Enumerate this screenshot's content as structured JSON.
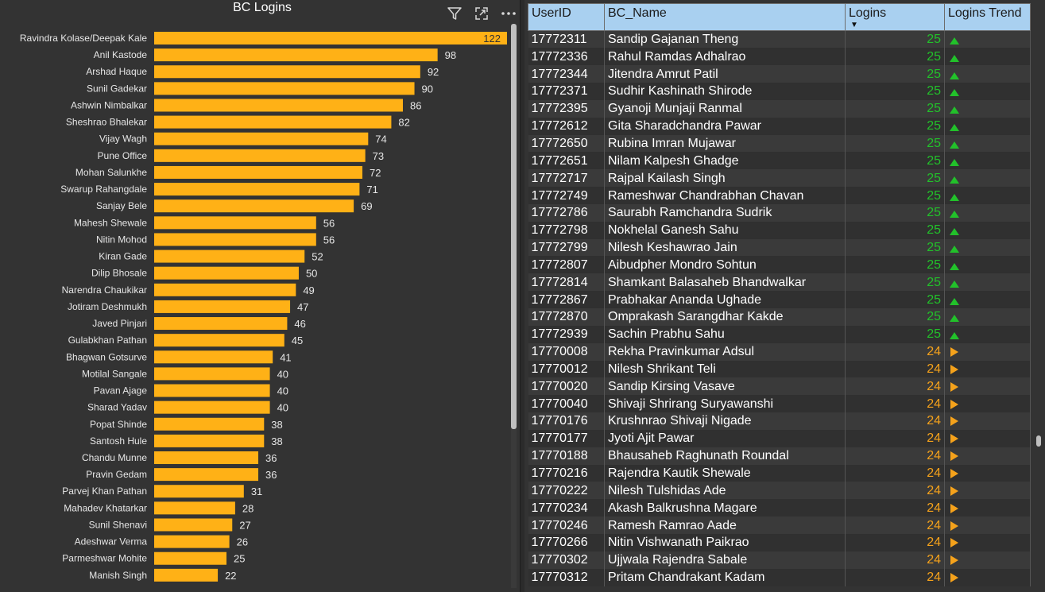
{
  "chart": {
    "title": "BC Logins",
    "icons": [
      "filter-icon",
      "focus-mode-icon",
      "more-options-icon"
    ]
  },
  "chart_data": {
    "type": "bar",
    "orientation": "horizontal",
    "title": "BC Logins",
    "bar_color": "#ffb116",
    "categories": [
      "Ravindra Kolase/Deepak Kale",
      "Anil Kastode",
      "Arshad Haque",
      "Sunil Gadekar",
      "Ashwin Nimbalkar",
      "Sheshrao Bhalekar",
      "Vijay Wagh",
      "Pune Office",
      "Mohan Salunkhe",
      "Swarup Rahangdale",
      "Sanjay Bele",
      "Mahesh Shewale",
      "Nitin Mohod",
      "Kiran Gade",
      "Dilip Bhosale",
      "Narendra Chaukikar",
      "Jotiram Deshmukh",
      "Javed Pinjari",
      "Gulabkhan Pathan",
      "Bhagwan Gotsurve",
      "Motilal Sangale",
      "Pavan Ajage",
      "Sharad Yadav",
      "Popat Shinde",
      "Santosh Hule",
      "Chandu Munne",
      "Pravin Gedam",
      "Parvej Khan Pathan",
      "Mahadev Khatarkar",
      "Sunil Shenavi",
      "Adeshwar Verma",
      "Parmeshwar Mohite",
      "Manish Singh"
    ],
    "values": [
      122,
      98,
      92,
      90,
      86,
      82,
      74,
      73,
      72,
      71,
      69,
      56,
      56,
      52,
      50,
      49,
      47,
      46,
      45,
      41,
      40,
      40,
      40,
      38,
      38,
      36,
      36,
      31,
      28,
      27,
      26,
      25,
      22
    ]
  },
  "table": {
    "headers": {
      "userid": "UserID",
      "name": "BC_Name",
      "logins": "Logins",
      "trend": "Logins Trend"
    },
    "colors": {
      "up": "#22c12a",
      "flat": "#f5a21b",
      "header_bg": "#a9d0f0"
    },
    "rows": [
      {
        "id": "17772311",
        "name": "Sandip Gajanan Theng",
        "logins": "25",
        "trend": "up"
      },
      {
        "id": "17772336",
        "name": "Rahul Ramdas Adhalrao",
        "logins": "25",
        "trend": "up"
      },
      {
        "id": "17772344",
        "name": "Jitendra Amrut Patil",
        "logins": "25",
        "trend": "up"
      },
      {
        "id": "17772371",
        "name": "Sudhir Kashinath Shirode",
        "logins": "25",
        "trend": "up"
      },
      {
        "id": "17772395",
        "name": "Gyanoji Munjaji Ranmal",
        "logins": "25",
        "trend": "up"
      },
      {
        "id": "17772612",
        "name": "Gita Sharadchandra Pawar",
        "logins": "25",
        "trend": "up"
      },
      {
        "id": "17772650",
        "name": "Rubina Imran Mujawar",
        "logins": "25",
        "trend": "up"
      },
      {
        "id": "17772651",
        "name": "Nilam Kalpesh Ghadge",
        "logins": "25",
        "trend": "up"
      },
      {
        "id": "17772717",
        "name": "Rajpal Kailash Singh",
        "logins": "25",
        "trend": "up"
      },
      {
        "id": "17772749",
        "name": "Rameshwar Chandrabhan Chavan",
        "logins": "25",
        "trend": "up"
      },
      {
        "id": "17772786",
        "name": "Saurabh Ramchandra Sudrik",
        "logins": "25",
        "trend": "up"
      },
      {
        "id": "17772798",
        "name": "Nokhelal Ganesh Sahu",
        "logins": "25",
        "trend": "up"
      },
      {
        "id": "17772799",
        "name": "Nilesh Keshawrao Jain",
        "logins": "25",
        "trend": "up"
      },
      {
        "id": "17772807",
        "name": "Aibudpher Mondro Sohtun",
        "logins": "25",
        "trend": "up"
      },
      {
        "id": "17772814",
        "name": "Shamkant Balasaheb Bhandwalkar",
        "logins": "25",
        "trend": "up"
      },
      {
        "id": "17772867",
        "name": "Prabhakar Ananda Ughade",
        "logins": "25",
        "trend": "up"
      },
      {
        "id": "17772870",
        "name": "Omprakash Sarangdhar Kakde",
        "logins": "25",
        "trend": "up"
      },
      {
        "id": "17772939",
        "name": "Sachin Prabhu Sahu",
        "logins": "25",
        "trend": "up"
      },
      {
        "id": "17770008",
        "name": "Rekha Pravinkumar Adsul",
        "logins": "24",
        "trend": "flat"
      },
      {
        "id": "17770012",
        "name": "Nilesh Shrikant Teli",
        "logins": "24",
        "trend": "flat"
      },
      {
        "id": "17770020",
        "name": "Sandip Kirsing Vasave",
        "logins": "24",
        "trend": "flat"
      },
      {
        "id": "17770040",
        "name": "Shivaji Shrirang Suryawanshi",
        "logins": "24",
        "trend": "flat"
      },
      {
        "id": "17770176",
        "name": "Krushnrao Shivaji Nigade",
        "logins": "24",
        "trend": "flat"
      },
      {
        "id": "17770177",
        "name": "Jyoti Ajit Pawar",
        "logins": "24",
        "trend": "flat"
      },
      {
        "id": "17770188",
        "name": "Bhausaheb Raghunath Roundal",
        "logins": "24",
        "trend": "flat"
      },
      {
        "id": "17770216",
        "name": "Rajendra Kautik Shewale",
        "logins": "24",
        "trend": "flat"
      },
      {
        "id": "17770222",
        "name": "Nilesh Tulshidas Ade",
        "logins": "24",
        "trend": "flat"
      },
      {
        "id": "17770234",
        "name": "Akash Balkrushna Magare",
        "logins": "24",
        "trend": "flat"
      },
      {
        "id": "17770246",
        "name": "Ramesh Ramrao Aade",
        "logins": "24",
        "trend": "flat"
      },
      {
        "id": "17770266",
        "name": "Nitin Vishwanath Paikrao",
        "logins": "24",
        "trend": "flat"
      },
      {
        "id": "17770302",
        "name": "Ujjwala Rajendra Sabale",
        "logins": "24",
        "trend": "flat"
      },
      {
        "id": "17770312",
        "name": "Pritam Chandrakant Kadam",
        "logins": "24",
        "trend": "flat"
      }
    ]
  }
}
